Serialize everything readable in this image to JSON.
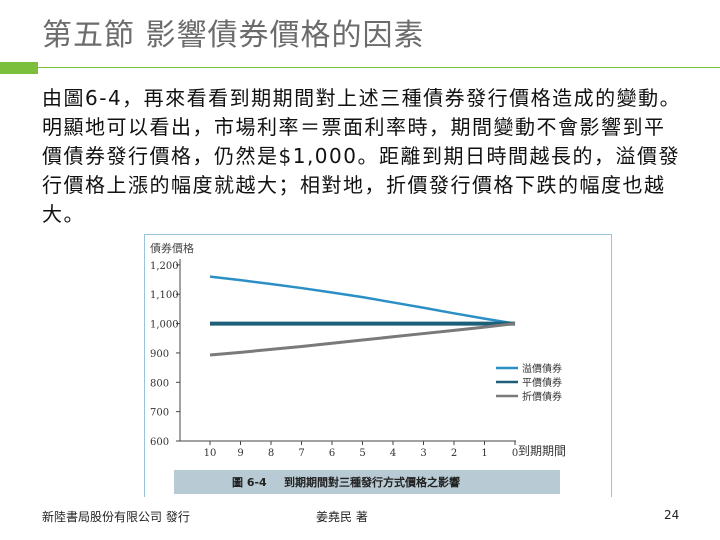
{
  "slide": {
    "title": "第五節 影響債券價格的因素",
    "body": "由圖6-4，再來看看到期期間對上述三種債券發行價格造成的變動。明顯地可以看出，市場利率＝票面利率時，期間變動不會影響到平價債券發行價格，仍然是$1,000。距離到期日時間越長的，溢價發行價格上漲的幅度就越大；相對地，折價發行價格下跌的幅度也越大。",
    "footer_publisher": "新陸書局股份有限公司 發行",
    "footer_author": "姜堯民 著",
    "page_number": "24"
  },
  "chart_data": {
    "type": "line",
    "ylabel": "債券價格",
    "xlabel": "到期期間",
    "caption_label": "圖 6-4",
    "caption_text": "到期期間對三種發行方式價格之影響",
    "x": [
      10,
      9,
      8,
      7,
      6,
      5,
      4,
      3,
      2,
      1,
      0
    ],
    "x_ticks": [
      "10",
      "9",
      "8",
      "7",
      "6",
      "5",
      "4",
      "3",
      "2",
      "1",
      "0"
    ],
    "y_ticks": [
      "1,200",
      "1,100",
      "1,000",
      "900",
      "800",
      "700",
      "600"
    ],
    "ylim": [
      600,
      1220
    ],
    "legend_position": "right",
    "series": [
      {
        "name": "溢價債券",
        "color": "#2b8fc6",
        "values": [
          1160,
          1148,
          1135,
          1121,
          1106,
          1090,
          1072,
          1054,
          1035,
          1017,
          1000
        ]
      },
      {
        "name": "平價債券",
        "color": "#1d5f78",
        "values": [
          1000,
          1000,
          1000,
          1000,
          1000,
          1000,
          1000,
          1000,
          1000,
          1000,
          1000
        ]
      },
      {
        "name": "折價債券",
        "color": "#7a7a7a",
        "values": [
          893,
          902,
          912,
          922,
          933,
          944,
          955,
          966,
          977,
          988,
          1000
        ]
      }
    ]
  }
}
